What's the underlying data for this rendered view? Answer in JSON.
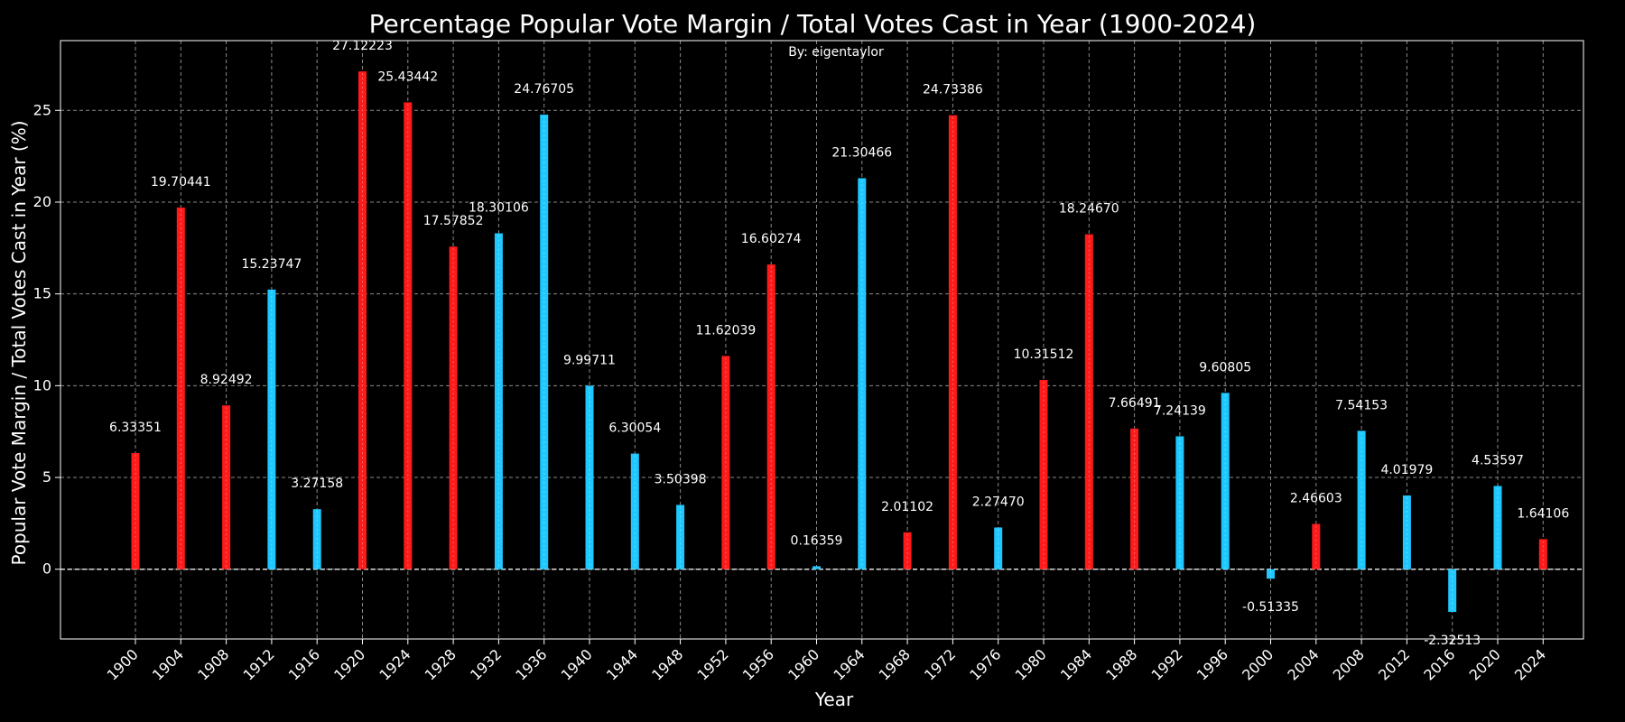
{
  "chart_data": {
    "type": "bar",
    "title": "Percentage Popular Vote Margin / Total Votes Cast in Year (1900-2024)",
    "subtitle": "By: eigentaylor",
    "xlabel": "Year",
    "ylabel": "Popular Vote Margin / Total Votes Cast in Year (%)",
    "ylim": [
      -3.8,
      28.8
    ],
    "yticks": [
      0,
      5,
      10,
      15,
      20,
      25
    ],
    "grid": true,
    "colors": {
      "red": "#ff1a1a",
      "blue": "#1ec8ff",
      "background": "#000000",
      "grid": "#8a8a8a",
      "text": "#ffffff"
    },
    "categories": [
      "1900",
      "1904",
      "1908",
      "1912",
      "1916",
      "1920",
      "1924",
      "1928",
      "1932",
      "1936",
      "1940",
      "1944",
      "1948",
      "1952",
      "1956",
      "1960",
      "1964",
      "1968",
      "1972",
      "1976",
      "1980",
      "1984",
      "1988",
      "1992",
      "1996",
      "2000",
      "2004",
      "2008",
      "2012",
      "2016",
      "2020",
      "2024"
    ],
    "values": [
      6.33351,
      19.70441,
      8.92492,
      15.23747,
      3.27158,
      27.12223,
      25.43442,
      17.57852,
      18.30106,
      24.76705,
      9.99711,
      6.30054,
      3.50398,
      11.62039,
      16.60274,
      0.16359,
      21.30466,
      2.01102,
      24.73386,
      2.2747,
      10.31512,
      18.2467,
      7.66491,
      7.24139,
      9.60805,
      -0.51335,
      2.46603,
      7.54153,
      4.01979,
      -2.32513,
      4.53597,
      1.64106
    ],
    "labels": [
      "6.33351",
      "19.70441",
      "8.92492",
      "15.23747",
      "3.27158",
      "27.12223",
      "25.43442",
      "17.57852",
      "18.30106",
      "24.76705",
      "9.99711",
      "6.30054",
      "3.50398",
      "11.62039",
      "16.60274",
      "0.16359",
      "21.30466",
      "2.01102",
      "24.73386",
      "2.27470",
      "10.31512",
      "18.24670",
      "7.66491",
      "7.24139",
      "9.60805",
      "-0.51335",
      "2.46603",
      "7.54153",
      "4.01979",
      "-2.32513",
      "4.53597",
      "1.64106"
    ],
    "bar_colors": [
      "red",
      "red",
      "red",
      "blue",
      "blue",
      "red",
      "red",
      "red",
      "blue",
      "blue",
      "blue",
      "blue",
      "blue",
      "red",
      "red",
      "blue",
      "blue",
      "red",
      "red",
      "blue",
      "red",
      "red",
      "red",
      "blue",
      "blue",
      "blue",
      "red",
      "blue",
      "blue",
      "blue",
      "blue",
      "red"
    ]
  }
}
